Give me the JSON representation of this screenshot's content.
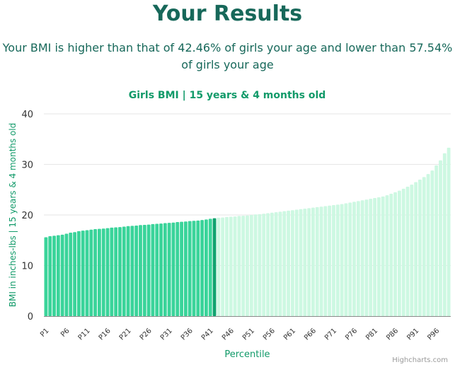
{
  "page": {
    "heading": "Your Results",
    "summary_line1": "Your BMI is higher than that of 42.46% of girls your age and lower than 57.54%",
    "summary_line2": "of girls your age",
    "credit": "Highcharts.com"
  },
  "colors": {
    "below": "#3ad49a",
    "above": "#cdf8e2",
    "marker": "#11a36f",
    "heading": "#17685a",
    "accent": "#119a69"
  },
  "chart_data": {
    "type": "bar",
    "title": "Girls BMI | 15 years & 4 months old",
    "xlabel": "Percentile",
    "ylabel": "BMI in inches-lbs | 15 years & 4 months old",
    "ylim": [
      0,
      40
    ],
    "yticks": [
      0,
      10,
      20,
      30,
      40
    ],
    "grid": true,
    "x_tick_labels": [
      "P1",
      "P6",
      "P11",
      "P16",
      "P21",
      "P26",
      "P31",
      "P36",
      "P41",
      "P46",
      "P51",
      "P56",
      "P61",
      "P66",
      "P71",
      "P76",
      "P81",
      "P86",
      "P91",
      "P96"
    ],
    "categories": [
      "P1",
      "P2",
      "P3",
      "P4",
      "P5",
      "P6",
      "P7",
      "P8",
      "P9",
      "P10",
      "P11",
      "P12",
      "P13",
      "P14",
      "P15",
      "P16",
      "P17",
      "P18",
      "P19",
      "P20",
      "P21",
      "P22",
      "P23",
      "P24",
      "P25",
      "P26",
      "P27",
      "P28",
      "P29",
      "P30",
      "P31",
      "P32",
      "P33",
      "P34",
      "P35",
      "P36",
      "P37",
      "P38",
      "P39",
      "P40",
      "P41",
      "P42",
      "P43",
      "P44",
      "P45",
      "P46",
      "P47",
      "P48",
      "P49",
      "P50",
      "P51",
      "P52",
      "P53",
      "P54",
      "P55",
      "P56",
      "P57",
      "P58",
      "P59",
      "P60",
      "P61",
      "P62",
      "P63",
      "P64",
      "P65",
      "P66",
      "P67",
      "P68",
      "P69",
      "P70",
      "P71",
      "P72",
      "P73",
      "P74",
      "P75",
      "P76",
      "P77",
      "P78",
      "P79",
      "P80",
      "P81",
      "P82",
      "P83",
      "P84",
      "P85",
      "P86",
      "P87",
      "P88",
      "P89",
      "P90",
      "P91",
      "P92",
      "P93",
      "P94",
      "P95",
      "P96",
      "P97",
      "P98",
      "P99"
    ],
    "values": [
      15.6,
      15.8,
      15.9,
      16.0,
      16.1,
      16.3,
      16.5,
      16.6,
      16.8,
      16.9,
      17.0,
      17.1,
      17.2,
      17.25,
      17.3,
      17.4,
      17.5,
      17.55,
      17.6,
      17.7,
      17.8,
      17.85,
      17.9,
      18.0,
      18.05,
      18.1,
      18.2,
      18.25,
      18.3,
      18.4,
      18.45,
      18.5,
      18.6,
      18.65,
      18.7,
      18.8,
      18.85,
      18.9,
      19.0,
      19.1,
      19.25,
      19.35,
      19.45,
      19.5,
      19.6,
      19.65,
      19.7,
      19.8,
      19.85,
      19.9,
      20.0,
      20.1,
      20.15,
      20.25,
      20.35,
      20.45,
      20.55,
      20.65,
      20.75,
      20.85,
      20.95,
      21.05,
      21.15,
      21.25,
      21.35,
      21.45,
      21.55,
      21.65,
      21.75,
      21.85,
      21.95,
      22.05,
      22.15,
      22.3,
      22.45,
      22.6,
      22.75,
      22.9,
      23.05,
      23.2,
      23.35,
      23.5,
      23.65,
      23.9,
      24.2,
      24.5,
      24.8,
      25.2,
      25.6,
      26.0,
      26.5,
      27.0,
      27.5,
      28.1,
      28.8,
      29.8,
      30.8,
      32.2,
      33.3
    ],
    "highlight_percentile": "P42",
    "highlight_index": 41
  }
}
